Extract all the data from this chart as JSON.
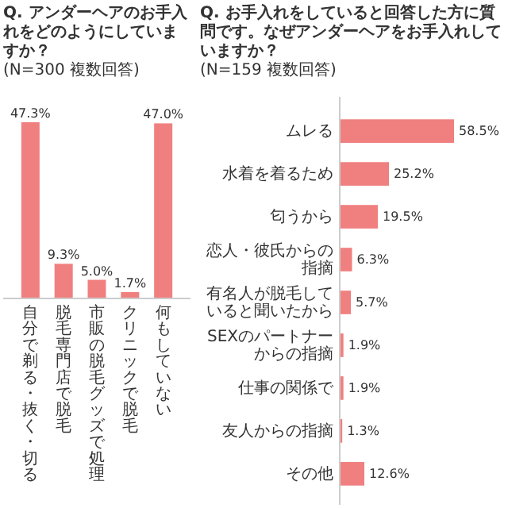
{
  "chart_data": [
    {
      "type": "bar",
      "title": "Q. アンダーヘアのお手入れをどのようにしていますか？",
      "subtitle": "(N=300 複数回答)",
      "categories": [
        "自分で剃る・抜く・切る",
        "脱毛専門店で脱毛",
        "市販の脱毛グッズで処理",
        "クリニックで脱毛",
        "何もしていない"
      ],
      "values": [
        47.3,
        9.3,
        5.0,
        1.7,
        47.0
      ],
      "value_labels": [
        "47.3%",
        "9.3%",
        "5.0%",
        "1.7%",
        "47.0%"
      ],
      "color": "#f08080"
    },
    {
      "type": "bar",
      "orientation": "horizontal",
      "title": "Q. お手入れをしていると回答した方に質問です。なぜアンダーヘアをお手入れしていますか？",
      "subtitle": "(N=159 複数回答)",
      "categories": [
        "ムレる",
        "水着を着るため",
        "匂うから",
        "恋人・彼氏からの指摘",
        "有名人が脱毛していると聞いたから",
        "SEXのパートナーからの指摘",
        "仕事の関係で",
        "友人からの指摘",
        "その他"
      ],
      "values": [
        58.5,
        25.2,
        19.5,
        6.3,
        5.7,
        1.9,
        1.9,
        1.3,
        12.6
      ],
      "value_labels": [
        "58.5%",
        "25.2%",
        "19.5%",
        "6.3%",
        "5.7%",
        "1.9%",
        "1.9%",
        "1.3%",
        "12.6%"
      ],
      "color": "#f08080"
    }
  ]
}
